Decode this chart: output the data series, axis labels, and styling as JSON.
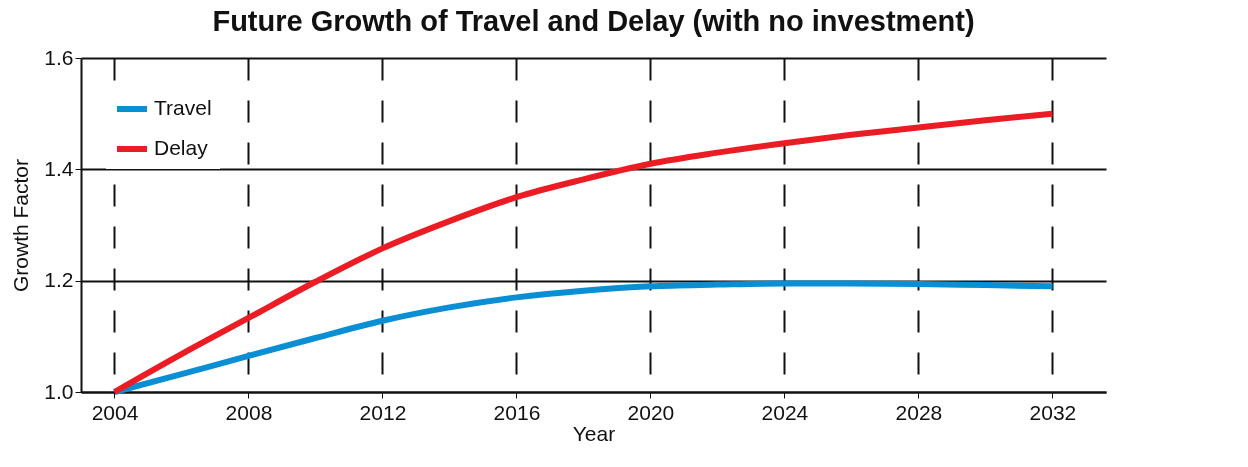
{
  "chart_data": {
    "type": "line",
    "title": "Future Growth of Travel and Delay (with no investment)",
    "xlabel": "Year",
    "ylabel": "Growth Factor",
    "x": [
      2004,
      2006,
      2008,
      2010,
      2012,
      2014,
      2016,
      2018,
      2020,
      2022,
      2024,
      2026,
      2028,
      2030,
      2032
    ],
    "series": [
      {
        "name": "Travel",
        "color": "#0a8fd4",
        "values": [
          1.0,
          1.032,
          1.065,
          1.097,
          1.128,
          1.152,
          1.17,
          1.182,
          1.19,
          1.193,
          1.195,
          1.195,
          1.194,
          1.192,
          1.19
        ]
      },
      {
        "name": "Delay",
        "color": "#ec1c24",
        "values": [
          1.0,
          1.068,
          1.133,
          1.198,
          1.258,
          1.307,
          1.35,
          1.382,
          1.41,
          1.43,
          1.447,
          1.462,
          1.475,
          1.488,
          1.5
        ]
      }
    ],
    "xlim": [
      2003,
      2033.6
    ],
    "xticks": [
      2004,
      2008,
      2012,
      2016,
      2020,
      2024,
      2028,
      2032
    ],
    "ylim": [
      1.0,
      1.6
    ],
    "yticks": [
      {
        "value": 1.0,
        "label": "1.0"
      },
      1.2,
      1.4,
      1.6
    ],
    "grid": true,
    "legend": "top left",
    "marker": "none",
    "line_style": "solid"
  }
}
